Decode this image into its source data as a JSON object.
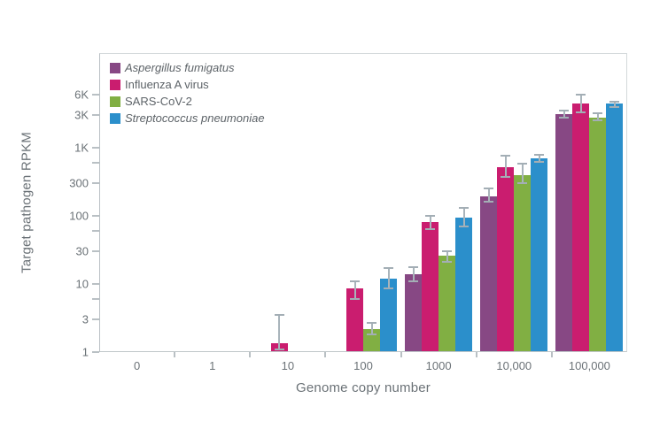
{
  "chart_data": {
    "type": "bar",
    "title": "",
    "xlabel": "Genome copy number",
    "ylabel": "Target pathogen RPKM",
    "y_scale": "log",
    "ylim": [
      1,
      24500
    ],
    "grid": false,
    "legend_position": "top-left-inside",
    "categories": [
      "0",
      "1",
      "10",
      "100",
      "1000",
      "10,000",
      "100,000"
    ],
    "y_ticks": [
      {
        "value": 6000,
        "label": "6K"
      },
      {
        "value": 3000,
        "label": "3K"
      },
      {
        "value": 1000,
        "label": "1K"
      },
      {
        "value": 600,
        "label": ""
      },
      {
        "value": 300,
        "label": "300"
      },
      {
        "value": 100,
        "label": "100"
      },
      {
        "value": 60,
        "label": ""
      },
      {
        "value": 30,
        "label": "30"
      },
      {
        "value": 10,
        "label": "10"
      },
      {
        "value": 6,
        "label": ""
      },
      {
        "value": 3,
        "label": "3"
      },
      {
        "value": 1,
        "label": "1"
      }
    ],
    "series": [
      {
        "name": "Aspergillus fumigatus",
        "italic": true,
        "color": "#874884",
        "values": [
          null,
          null,
          null,
          null,
          14,
          195,
          3100
        ],
        "err_hi": [
          null,
          null,
          null,
          null,
          17.5,
          250,
          3500
        ],
        "err_lo": [
          null,
          null,
          null,
          null,
          11,
          160,
          2800
        ]
      },
      {
        "name": "Influenza A virus",
        "italic": false,
        "color": "#ca1d6f",
        "values": [
          null,
          null,
          1.35,
          8.5,
          80,
          520,
          4400
        ],
        "err_hi": [
          null,
          null,
          3.5,
          11,
          100,
          760,
          6000
        ],
        "err_lo": [
          null,
          null,
          1.1,
          6,
          63,
          370,
          3300
        ]
      },
      {
        "name": "SARS-CoV-2",
        "italic": false,
        "color": "#81af43",
        "values": [
          null,
          null,
          null,
          2.2,
          26,
          400,
          2800
        ],
        "err_hi": [
          null,
          null,
          null,
          2.7,
          30,
          580,
          3200
        ],
        "err_lo": [
          null,
          null,
          null,
          1.8,
          21,
          300,
          2500
        ]
      },
      {
        "name": "Streptococcus pneumoniae",
        "italic": true,
        "color": "#2b8fcb",
        "values": [
          null,
          null,
          null,
          12,
          95,
          700,
          4400
        ],
        "err_hi": [
          null,
          null,
          null,
          17,
          130,
          790,
          4800
        ],
        "err_lo": [
          null,
          null,
          null,
          8.5,
          70,
          620,
          4000
        ]
      }
    ],
    "error_bar_color": "#a9b4bb",
    "frame_color": "#c7cdd0",
    "text_color": "#6b7277"
  }
}
